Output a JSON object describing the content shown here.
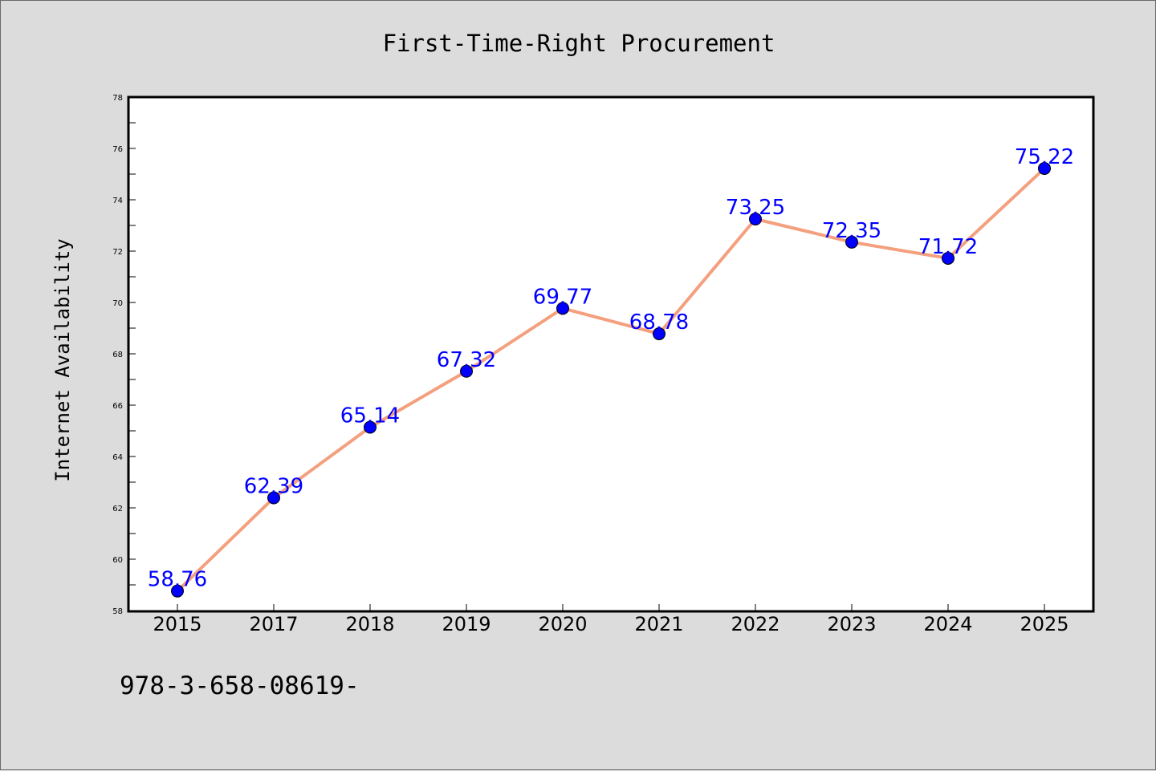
{
  "colors": {
    "background": "#dcdcdc",
    "plot_background": "#ffffff",
    "line": "#f4a07f",
    "marker": "#0000ff",
    "data_label": "#0000ff"
  },
  "footer_text": "978-3-658-08619-",
  "chart_data": {
    "type": "line",
    "title": "First-Time-Right Procurement",
    "xlabel": "",
    "ylabel": "Internet Availability",
    "categories": [
      "2015",
      "2017",
      "2018",
      "2019",
      "2020",
      "2021",
      "2022",
      "2023",
      "2024",
      "2025"
    ],
    "series": [
      {
        "values": [
          58.76,
          62.39,
          65.14,
          67.32,
          69.77,
          68.78,
          73.25,
          72.35,
          71.72,
          75.22
        ],
        "data_labels": [
          "58.76",
          "62.39",
          "65.14",
          "67.32",
          "69.77",
          "68.78",
          "73.25",
          "72.35",
          "71.72",
          "75.22"
        ]
      }
    ],
    "ylim": [
      58,
      78
    ],
    "yticks": [
      58,
      60,
      62,
      64,
      66,
      68,
      70,
      72,
      74,
      76,
      78
    ],
    "ytick_labels": [
      "58",
      "60",
      "62",
      "64",
      "66",
      "68",
      "70",
      "72",
      "74",
      "76",
      "78"
    ],
    "grid": false,
    "legend": "none"
  }
}
